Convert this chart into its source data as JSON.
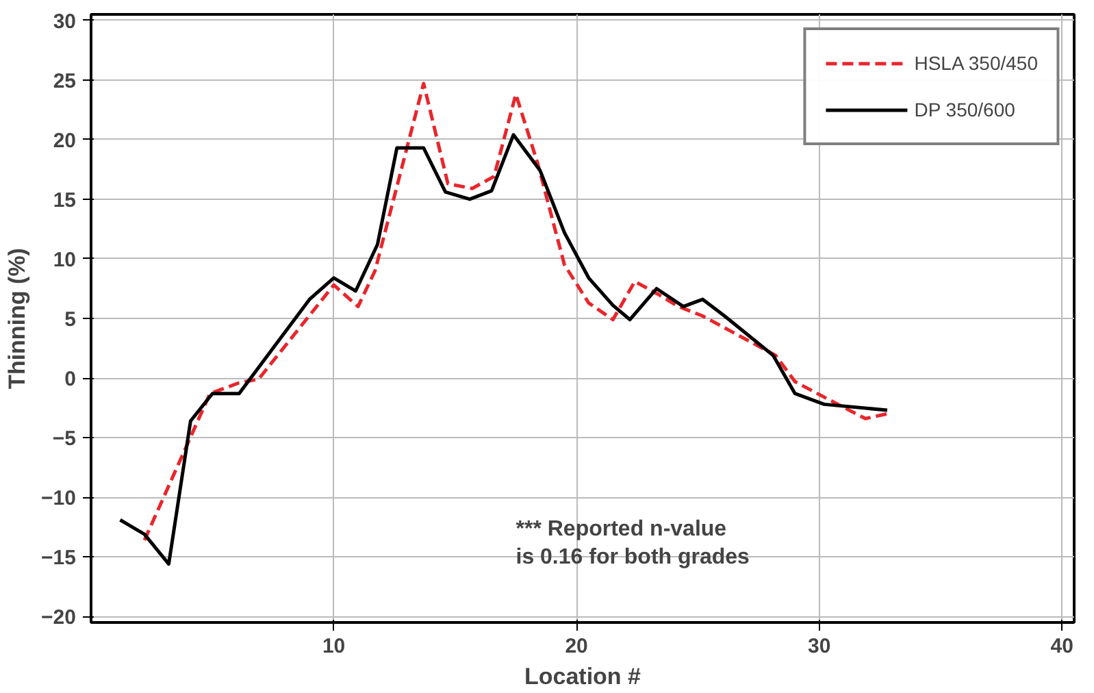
{
  "chart_data": {
    "type": "line",
    "xlabel": "Location #",
    "ylabel": "Thinning (%)",
    "xlim": [
      0,
      40.5
    ],
    "ylim": [
      -20.5,
      30.5
    ],
    "xticks": [
      10,
      20,
      30,
      40
    ],
    "yticks": [
      -20,
      -15,
      -10,
      -5,
      0,
      5,
      10,
      15,
      20,
      25,
      30
    ],
    "grid": true,
    "legend": "top right",
    "annotations": [
      "*** Reported n-value\nis 0.16 for both grades"
    ],
    "series": [
      {
        "name": "HSLA 350/450",
        "color": "#e8262c",
        "line_style": "dashed",
        "x": [
          2.2,
          4.9,
          6.1,
          6.9,
          10.0,
          11.0,
          11.7,
          13.7,
          14.7,
          15.7,
          16.6,
          17.5,
          18.4,
          19.5,
          20.5,
          21.5,
          22.4,
          23.3,
          24.2,
          25.2,
          28.2,
          29.0,
          30.2,
          31.9,
          32.8
        ],
        "values": [
          -13.6,
          -1.3,
          -0.4,
          -0.1,
          7.8,
          6.0,
          9.0,
          24.7,
          16.3,
          15.9,
          16.9,
          23.8,
          18.0,
          9.5,
          6.3,
          4.9,
          8.1,
          7.1,
          6.0,
          5.2,
          1.9,
          -0.3,
          -1.6,
          -3.4,
          -3.0
        ]
      },
      {
        "name": "DP 350/600",
        "color": "#000000",
        "line_style": "solid",
        "x": [
          1.2,
          2.2,
          3.2,
          4.1,
          5.0,
          6.1,
          9.0,
          10.0,
          10.9,
          11.8,
          12.6,
          13.7,
          14.6,
          15.6,
          16.5,
          17.4,
          18.5,
          19.5,
          20.5,
          21.5,
          22.2,
          23.3,
          24.4,
          25.2,
          26.1,
          28.1,
          29.0,
          30.2,
          32.8
        ],
        "values": [
          -11.9,
          -13.1,
          -15.6,
          -3.6,
          -1.3,
          -1.3,
          6.6,
          8.4,
          7.3,
          11.2,
          19.3,
          19.3,
          15.6,
          15.0,
          15.7,
          20.4,
          17.4,
          12.2,
          8.4,
          6.1,
          4.9,
          7.5,
          6.0,
          6.6,
          5.2,
          1.9,
          -1.3,
          -2.2,
          -2.7
        ]
      }
    ]
  }
}
